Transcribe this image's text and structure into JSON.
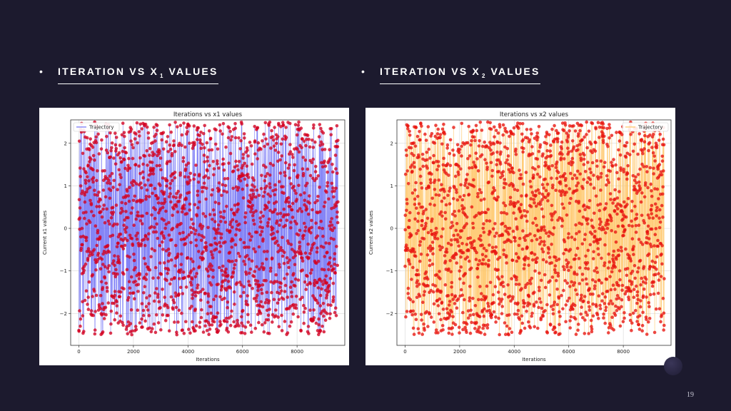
{
  "slide": {
    "bullet_char": "•",
    "headings": [
      {
        "pre": "ITERATION VS X",
        "sub": "1",
        "post": "VALUES"
      },
      {
        "pre": "ITERATION VS X",
        "sub": "2",
        "post": "VALUES"
      }
    ],
    "page_number": "19"
  },
  "chart_data": [
    {
      "type": "line",
      "title": "Iterations vs x1 values",
      "xlabel": "Iterations",
      "ylabel": "Current x1 values",
      "xlim": [
        -300,
        9750
      ],
      "ylim": [
        -2.75,
        2.55
      ],
      "x_ticks": [
        0,
        2000,
        4000,
        6000,
        8000
      ],
      "y_ticks": [
        -2,
        -1,
        0,
        1,
        2
      ],
      "x_tick_labels": [
        "0",
        "2000",
        "4000",
        "6000",
        "8000"
      ],
      "y_tick_labels": [
        "−2",
        "−1",
        "0",
        "1",
        "2"
      ],
      "grid": true,
      "legend_position": "upper-left",
      "series": [
        {
          "name": "Trajectory",
          "line_color": "#6f6ff5",
          "marker_color": "#d4001f",
          "x_start": 0,
          "x_end": 9500,
          "y_min": -2.5,
          "y_max": 2.5,
          "distribution": "random uniform"
        }
      ]
    },
    {
      "type": "line",
      "title": "Iterations vs x2 values",
      "xlabel": "Iterations",
      "ylabel": "Current x2 values",
      "xlim": [
        -300,
        9750
      ],
      "ylim": [
        -2.75,
        2.55
      ],
      "x_ticks": [
        0,
        2000,
        4000,
        6000,
        8000
      ],
      "y_ticks": [
        -2,
        -1,
        0,
        1,
        2
      ],
      "x_tick_labels": [
        "0",
        "2000",
        "4000",
        "6000",
        "8000"
      ],
      "y_tick_labels": [
        "−2",
        "−1",
        "0",
        "1",
        "2"
      ],
      "grid": true,
      "legend_position": "upper-right",
      "series": [
        {
          "name": "Trajectory",
          "line_color": "#ffc463",
          "marker_color": "#e8140f",
          "x_start": 0,
          "x_end": 9500,
          "y_min": -2.5,
          "y_max": 2.5,
          "distribution": "random uniform"
        }
      ]
    }
  ]
}
